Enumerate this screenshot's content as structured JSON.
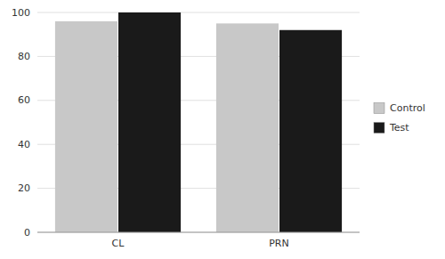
{
  "chart_data": {
    "type": "bar",
    "categories": [
      "CL",
      "PRN"
    ],
    "series": [
      {
        "name": "Control",
        "color": "#c8c8c8",
        "values": [
          96,
          95
        ]
      },
      {
        "name": "Test",
        "color": "#1a1a1a",
        "values": [
          100,
          92
        ]
      }
    ],
    "ylim": [
      0,
      100
    ],
    "yticks": [
      0,
      20,
      40,
      60,
      80,
      100
    ],
    "grid": true,
    "legend": "right"
  }
}
